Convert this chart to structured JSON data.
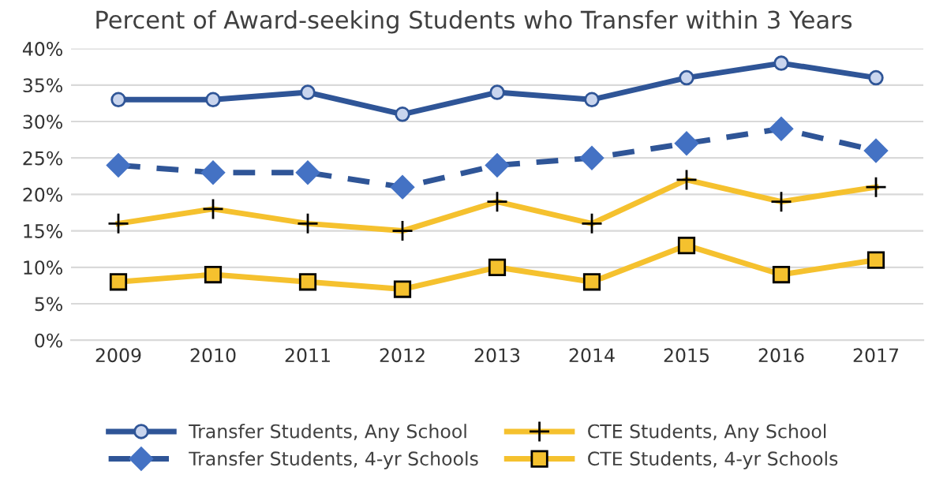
{
  "chart_data": {
    "type": "line",
    "title": "Percent of Award-seeking Students who Transfer within 3 Years",
    "categories": [
      "2009",
      "2010",
      "2011",
      "2012",
      "2013",
      "2014",
      "2015",
      "2016",
      "2017"
    ],
    "series": [
      {
        "name": "Transfer Students, Any School",
        "color": "#2f5597",
        "marker": "circle",
        "line_style": "solid",
        "values": [
          33,
          33,
          34,
          31,
          34,
          33,
          36,
          38,
          36
        ]
      },
      {
        "name": "Transfer Students, 4-yr Schools",
        "color": "#2f5597",
        "marker": "diamond",
        "line_style": "dashed",
        "values": [
          24,
          23,
          23,
          21,
          24,
          25,
          27,
          29,
          26
        ]
      },
      {
        "name": "CTE Students, Any School",
        "color": "#f5c12e",
        "marker": "cross",
        "line_style": "solid",
        "values": [
          16,
          18,
          16,
          15,
          19,
          16,
          22,
          19,
          21
        ]
      },
      {
        "name": "CTE Students, 4-yr Schools",
        "color": "#f5c12e",
        "marker": "square",
        "line_style": "solid",
        "values": [
          8,
          9,
          8,
          7,
          10,
          8,
          13,
          9,
          11
        ]
      }
    ],
    "ylim": [
      0,
      40
    ],
    "yticks": [
      {
        "value": 0,
        "label": "0%"
      },
      {
        "value": 5,
        "label": "5%"
      },
      {
        "value": 10,
        "label": "10%"
      },
      {
        "value": 15,
        "label": "15%"
      },
      {
        "value": 20,
        "label": "20%"
      },
      {
        "value": 25,
        "label": "25%"
      },
      {
        "value": 30,
        "label": "30%"
      },
      {
        "value": 35,
        "label": "35%"
      },
      {
        "value": 40,
        "label": "40%"
      }
    ],
    "grid": "y",
    "legend": "bottom"
  }
}
